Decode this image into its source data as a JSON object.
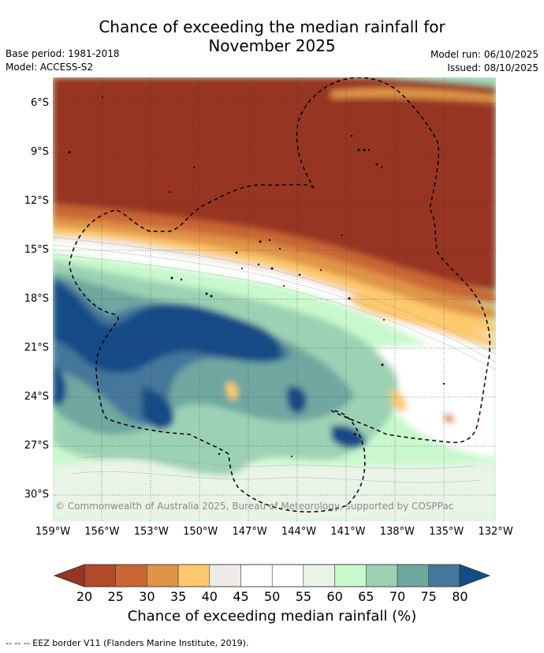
{
  "title_line1": "Chance of exceeding the median rainfall for",
  "title_line2": "November 2025",
  "base_period": "Base period: 1981-2018",
  "model": "Model: ACCESS-S2",
  "model_run": "Model run: 06/10/2025",
  "issued": "Issued: 08/10/2025",
  "lat_labels": [
    "6°S",
    "9°S",
    "12°S",
    "15°S",
    "18°S",
    "21°S",
    "24°S",
    "27°S",
    "30°S"
  ],
  "lon_labels": [
    "159°W",
    "156°W",
    "153°W",
    "150°W",
    "147°W",
    "144°W",
    "141°W",
    "138°W",
    "135°W",
    "132°W"
  ],
  "copyright": "© Commonwealth of Australia 2025, Bureau of Meteorology, supported by COSPPac",
  "colorbar": {
    "ticks": [
      "20",
      "25",
      "30",
      "35",
      "40",
      "45",
      "50",
      "55",
      "60",
      "65",
      "70",
      "75",
      "80"
    ],
    "label": "Chance of exceeding median rainfall (%)",
    "colors": [
      "#973423",
      "#b14a28",
      "#c96634",
      "#df9447",
      "#fdc96d",
      "#edebe7",
      "#ffffff",
      "#ffffff",
      "#e9f4e7",
      "#c9f8cc",
      "#9dd1b4",
      "#6fa7a0",
      "#45779a",
      "#134c87"
    ]
  },
  "footer": "--  --  -- EEZ border V11 (Flanders Marine Institute, 2019)."
}
